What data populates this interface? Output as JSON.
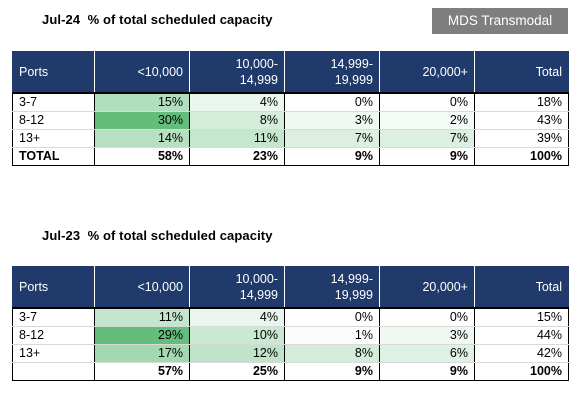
{
  "header": {
    "source_badge": "MDS Transmodal"
  },
  "columns": [
    "Ports",
    "<10,000",
    "10,000-\n14,999",
    "14,999-\n19,999",
    "20,000+",
    "Total"
  ],
  "tables": [
    {
      "title": "Jul-24  % of total scheduled capacity",
      "rows": [
        {
          "label": "3-7",
          "values": [
            "15%",
            "4%",
            "0%",
            "0%",
            "18%"
          ],
          "shade": [
            0.5,
            0.13,
            0.0,
            0.0
          ]
        },
        {
          "label": "8-12",
          "values": [
            "30%",
            "8%",
            "3%",
            "2%",
            "43%"
          ],
          "shade": [
            1.0,
            0.27,
            0.1,
            0.07
          ]
        },
        {
          "label": "13+",
          "values": [
            "14%",
            "11%",
            "7%",
            "7%",
            "39%"
          ],
          "shade": [
            0.47,
            0.37,
            0.23,
            0.23
          ]
        }
      ],
      "total": {
        "label": "TOTAL",
        "values": [
          "58%",
          "23%",
          "9%",
          "9%",
          "100%"
        ]
      }
    },
    {
      "title": "Jul-23  % of total scheduled capacity",
      "rows": [
        {
          "label": "3-7",
          "values": [
            "11%",
            "4%",
            "0%",
            "0%",
            "15%"
          ],
          "shade": [
            0.38,
            0.14,
            0.0,
            0.0
          ]
        },
        {
          "label": "8-12",
          "values": [
            "29%",
            "10%",
            "1%",
            "3%",
            "44%"
          ],
          "shade": [
            1.0,
            0.34,
            0.03,
            0.1
          ]
        },
        {
          "label": "13+",
          "values": [
            "17%",
            "12%",
            "8%",
            "6%",
            "42%"
          ],
          "shade": [
            0.59,
            0.41,
            0.28,
            0.21
          ]
        }
      ],
      "total": {
        "label": "",
        "values": [
          "57%",
          "25%",
          "9%",
          "9%",
          "100%"
        ]
      }
    }
  ],
  "colors": {
    "header_bg": "#1f3a6b",
    "heat_max": "#63be7b",
    "heat_min": "#ffffff",
    "badge_bg": "#7f7f7f"
  }
}
